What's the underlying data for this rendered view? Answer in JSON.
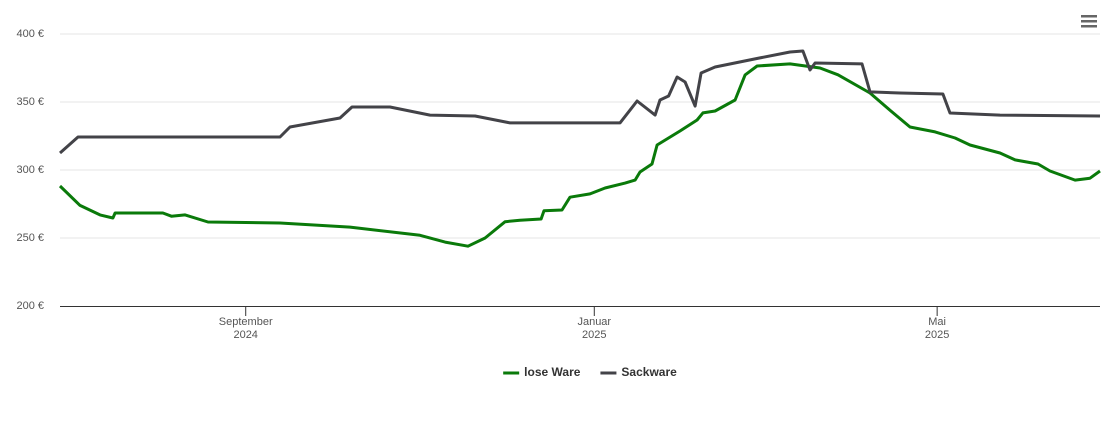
{
  "chart_data": {
    "type": "line",
    "xlim": [
      0,
      364
    ],
    "xticks": [
      {
        "value": 65,
        "label": "September 2024"
      },
      {
        "value": 187,
        "label": "Januar 2025"
      },
      {
        "value": 307,
        "label": "Mai 2025"
      }
    ],
    "ylim": [
      200,
      400
    ],
    "yticks": [
      {
        "value": 200,
        "label": "200 €"
      },
      {
        "value": 250,
        "label": "250 €"
      },
      {
        "value": 300,
        "label": "300 €"
      },
      {
        "value": 350,
        "label": "350 €"
      },
      {
        "value": 400,
        "label": "400 €"
      }
    ],
    "grid": true,
    "legend": "bottom",
    "series": [
      {
        "name": "lose Ware",
        "color": "#0a7a0a",
        "x": [
          0,
          7,
          14,
          18.5,
          19.3,
          36,
          39,
          43.8,
          51.8,
          77,
          101.5,
          126,
          134.8,
          142.8,
          148.8,
          155.8,
          161,
          168.4,
          169.4,
          175.7,
          178.5,
          185.5,
          190.8,
          197.8,
          201.3,
          203,
          207.2,
          209,
          217,
          223,
          225,
          229.3,
          236.3,
          239.8,
          244,
          255.5,
          266,
          272.3,
          283.5,
          290.5,
          297.5,
          306.3,
          313.3,
          318.5,
          329,
          334.3,
          342.3,
          346.5,
          355.3,
          360.5,
          364
        ],
        "values": [
          288.2,
          274,
          267,
          264.7,
          268.4,
          268.4,
          266,
          267,
          261.8,
          261,
          258,
          252,
          247,
          244,
          250,
          262,
          263,
          264,
          270,
          270.6,
          280,
          282.4,
          286.8,
          290.4,
          292.6,
          298.5,
          304.4,
          318.4,
          328.7,
          336.8,
          342,
          343.4,
          351.5,
          369.9,
          376.5,
          378,
          375,
          370,
          356.6,
          344,
          331.6,
          328,
          323.5,
          318.4,
          312.5,
          307.4,
          304.4,
          299.3,
          292.6,
          294,
          299.3
        ]
      },
      {
        "name": "Sackware",
        "color": "#434348",
        "x": [
          0,
          6.3,
          77,
          80.5,
          98,
          102.2,
          115.5,
          129.5,
          145.3,
          157.5,
          196,
          202,
          208.3,
          210,
          213,
          216,
          218.8,
          222.3,
          224.4,
          229.3,
          245,
          255.5,
          260,
          262.5,
          264.3,
          280.7,
          283.5,
          294,
          309,
          311.5,
          329,
          364
        ],
        "values": [
          312.5,
          324.3,
          324.3,
          331.6,
          338.2,
          346.3,
          346.3,
          340.4,
          339.7,
          334.6,
          334.6,
          350.7,
          340.4,
          351.5,
          354.4,
          368.4,
          364.7,
          347,
          371.3,
          375.7,
          382.4,
          386.8,
          387.5,
          373.5,
          378.7,
          378,
          357.4,
          356.6,
          355.9,
          341.9,
          340.4,
          339.7
        ]
      }
    ]
  }
}
